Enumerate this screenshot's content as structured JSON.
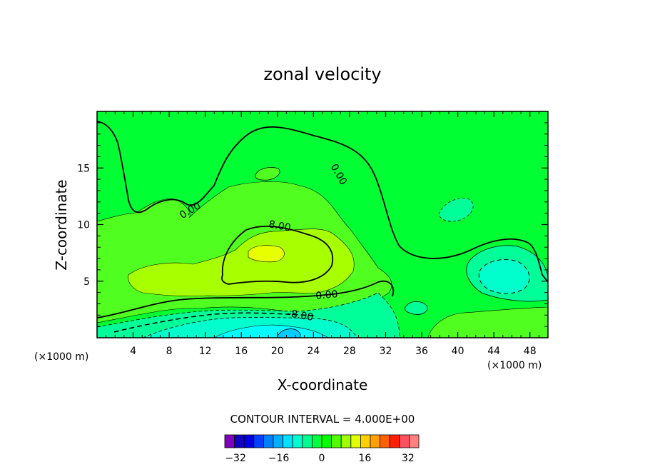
{
  "chart_data": {
    "type": "heatmap",
    "title": "zonal velocity",
    "xlabel": "X-coordinate",
    "ylabel": "Z-coordinate",
    "x_unit_left": "(×1000 m)",
    "x_unit_right": "(×1000 m)",
    "xlim": [
      0,
      50
    ],
    "ylim": [
      0,
      20
    ],
    "x_ticks": [
      4,
      8,
      12,
      16,
      20,
      24,
      28,
      32,
      36,
      40,
      44,
      48
    ],
    "y_ticks": [
      5,
      10,
      15
    ],
    "contour_labels": [
      {
        "text": "0.00",
        "x": 26.5,
        "y": 14.3
      },
      {
        "text": "0.00",
        "x": 10.5,
        "y": 11.0
      },
      {
        "text": "8.00",
        "x": 20.2,
        "y": 9.6
      },
      {
        "text": "0.00",
        "x": 25.5,
        "y": 3.5
      },
      {
        "text": "-8.00",
        "x": 22.5,
        "y": 1.7
      }
    ],
    "contour_interval_text": "CONTOUR INTERVAL = 4.000E+00",
    "colorbar": {
      "min": -36,
      "max": 36,
      "step": 4,
      "tick_labels": [
        "-32",
        "-16",
        "0",
        "16",
        "32"
      ],
      "colors": [
        "#7f00bf",
        "#1400c0",
        "#0000e0",
        "#0040ff",
        "#0080ff",
        "#00b0ff",
        "#00e0ff",
        "#00ffd0",
        "#00ff90",
        "#00ff40",
        "#00ff00",
        "#50ff00",
        "#a0ff00",
        "#e0ff00",
        "#ffd000",
        "#ffa000",
        "#ff6000",
        "#ff2000",
        "#ff5060",
        "#ff8080",
        "#ffa0a0"
      ]
    },
    "regions": {
      "background": "#00ff33",
      "light_green": "#50ff20",
      "yellow_green": "#a8ff00",
      "yellow": "#e8ff00",
      "cyan_green": "#00ff99",
      "teal": "#00ffcc",
      "cyan": "#00ffff",
      "blue": "#00ccff"
    }
  }
}
